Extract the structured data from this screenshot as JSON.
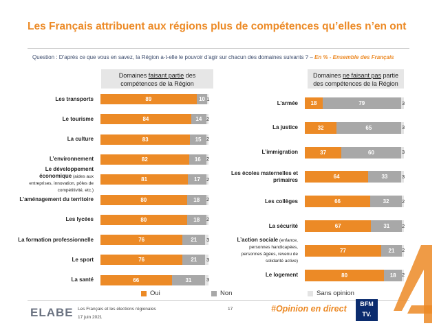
{
  "title": "Les Français attribuent aux régions plus de compétences qu’elles n’en ont",
  "question_main": "Question : D’après ce que vous en savez, la Région a-t-elle le pouvoir d’agir sur chacun des domaines suivants ? – ",
  "question_highlight": "En % - Ensemble des Français",
  "left_header": {
    "pre": "Domaines ",
    "underlined": "faisant partie",
    "post": " des compétences de la Région"
  },
  "right_header": {
    "pre": "Domaines ",
    "underlined": "ne faisant pas",
    "post": " partie des compétences de la Région"
  },
  "chart_data": [
    {
      "type": "bar",
      "orientation": "horizontal",
      "stacked": true,
      "title": "Domaines faisant partie des compétences de la Région",
      "categories": [
        {
          "label": "Les transports"
        },
        {
          "label": "Le tourisme"
        },
        {
          "label": "La culture"
        },
        {
          "label": "L’environnement"
        },
        {
          "label": "Le développement économique",
          "sub": "(aides aux entreprises, innovation, pôles de compétitivité, etc.)"
        },
        {
          "label": "L’aménagement du territoire"
        },
        {
          "label": "Les lycées"
        },
        {
          "label": "La formation professionnelle"
        },
        {
          "label": "Le sport"
        },
        {
          "label": "La santé"
        }
      ],
      "series": [
        {
          "name": "Oui",
          "values": [
            89,
            84,
            83,
            82,
            81,
            80,
            80,
            76,
            76,
            66
          ]
        },
        {
          "name": "Non",
          "values": [
            10,
            14,
            15,
            16,
            17,
            18,
            18,
            21,
            21,
            31
          ]
        },
        {
          "name": "Sans opinion",
          "values": [
            1,
            2,
            2,
            2,
            2,
            2,
            2,
            3,
            3,
            3
          ]
        }
      ],
      "xlim": [
        0,
        100
      ]
    },
    {
      "type": "bar",
      "orientation": "horizontal",
      "stacked": true,
      "title": "Domaines ne faisant pas partie des compétences de la Région",
      "categories": [
        {
          "label": "L’armée"
        },
        {
          "label": "La justice"
        },
        {
          "label": "L’immigration"
        },
        {
          "label": "Les écoles maternelles et primaires"
        },
        {
          "label": "Les collèges"
        },
        {
          "label": "La sécurité"
        },
        {
          "label": "L’action sociale",
          "sub": "(enfance, personnes handicapées, personnes âgées, revenu de solidarité active)"
        },
        {
          "label": "Le logement"
        }
      ],
      "series": [
        {
          "name": "Oui",
          "values": [
            18,
            32,
            37,
            64,
            66,
            67,
            77,
            80
          ]
        },
        {
          "name": "Non",
          "values": [
            79,
            65,
            60,
            33,
            32,
            31,
            21,
            18
          ]
        },
        {
          "name": "Sans opinion",
          "values": [
            3,
            3,
            3,
            3,
            2,
            2,
            2,
            2
          ]
        }
      ],
      "xlim": [
        0,
        100
      ]
    }
  ],
  "legend": {
    "oui": "Oui",
    "non": "Non",
    "so": "Sans opinion"
  },
  "colors": {
    "oui": "#ec8a26",
    "non": "#a8a8a8",
    "so": "#e4e4e4",
    "accent": "#ec8a26"
  },
  "footer": {
    "brand": "ELABE",
    "study": "Les Français et les élections régionales",
    "date": "17 juin 2021",
    "page": "17",
    "hashtag": "#Opinion en direct",
    "partner_line1": "BFM",
    "partner_line2": "TV."
  }
}
